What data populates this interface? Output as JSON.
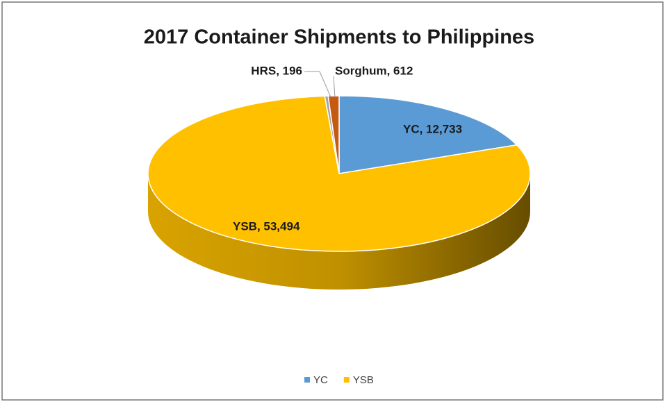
{
  "chart_data": {
    "type": "pie3d",
    "title": "2017 Container Shipments to Philippines",
    "categories": [
      "YC",
      "YSB",
      "HRS",
      "Sorghum"
    ],
    "values": [
      12733,
      53494,
      196,
      612
    ],
    "value_labels": [
      "YC, 12,733",
      "YSB, 53,494",
      "HRS, 196",
      "Sorghum, 612"
    ],
    "colors": [
      "#5b9bd5",
      "#ffc000",
      "#a5a5a5",
      "#c55a11"
    ],
    "legend": {
      "entries": [
        "YC",
        "YSB"
      ],
      "position": "bottom"
    }
  }
}
